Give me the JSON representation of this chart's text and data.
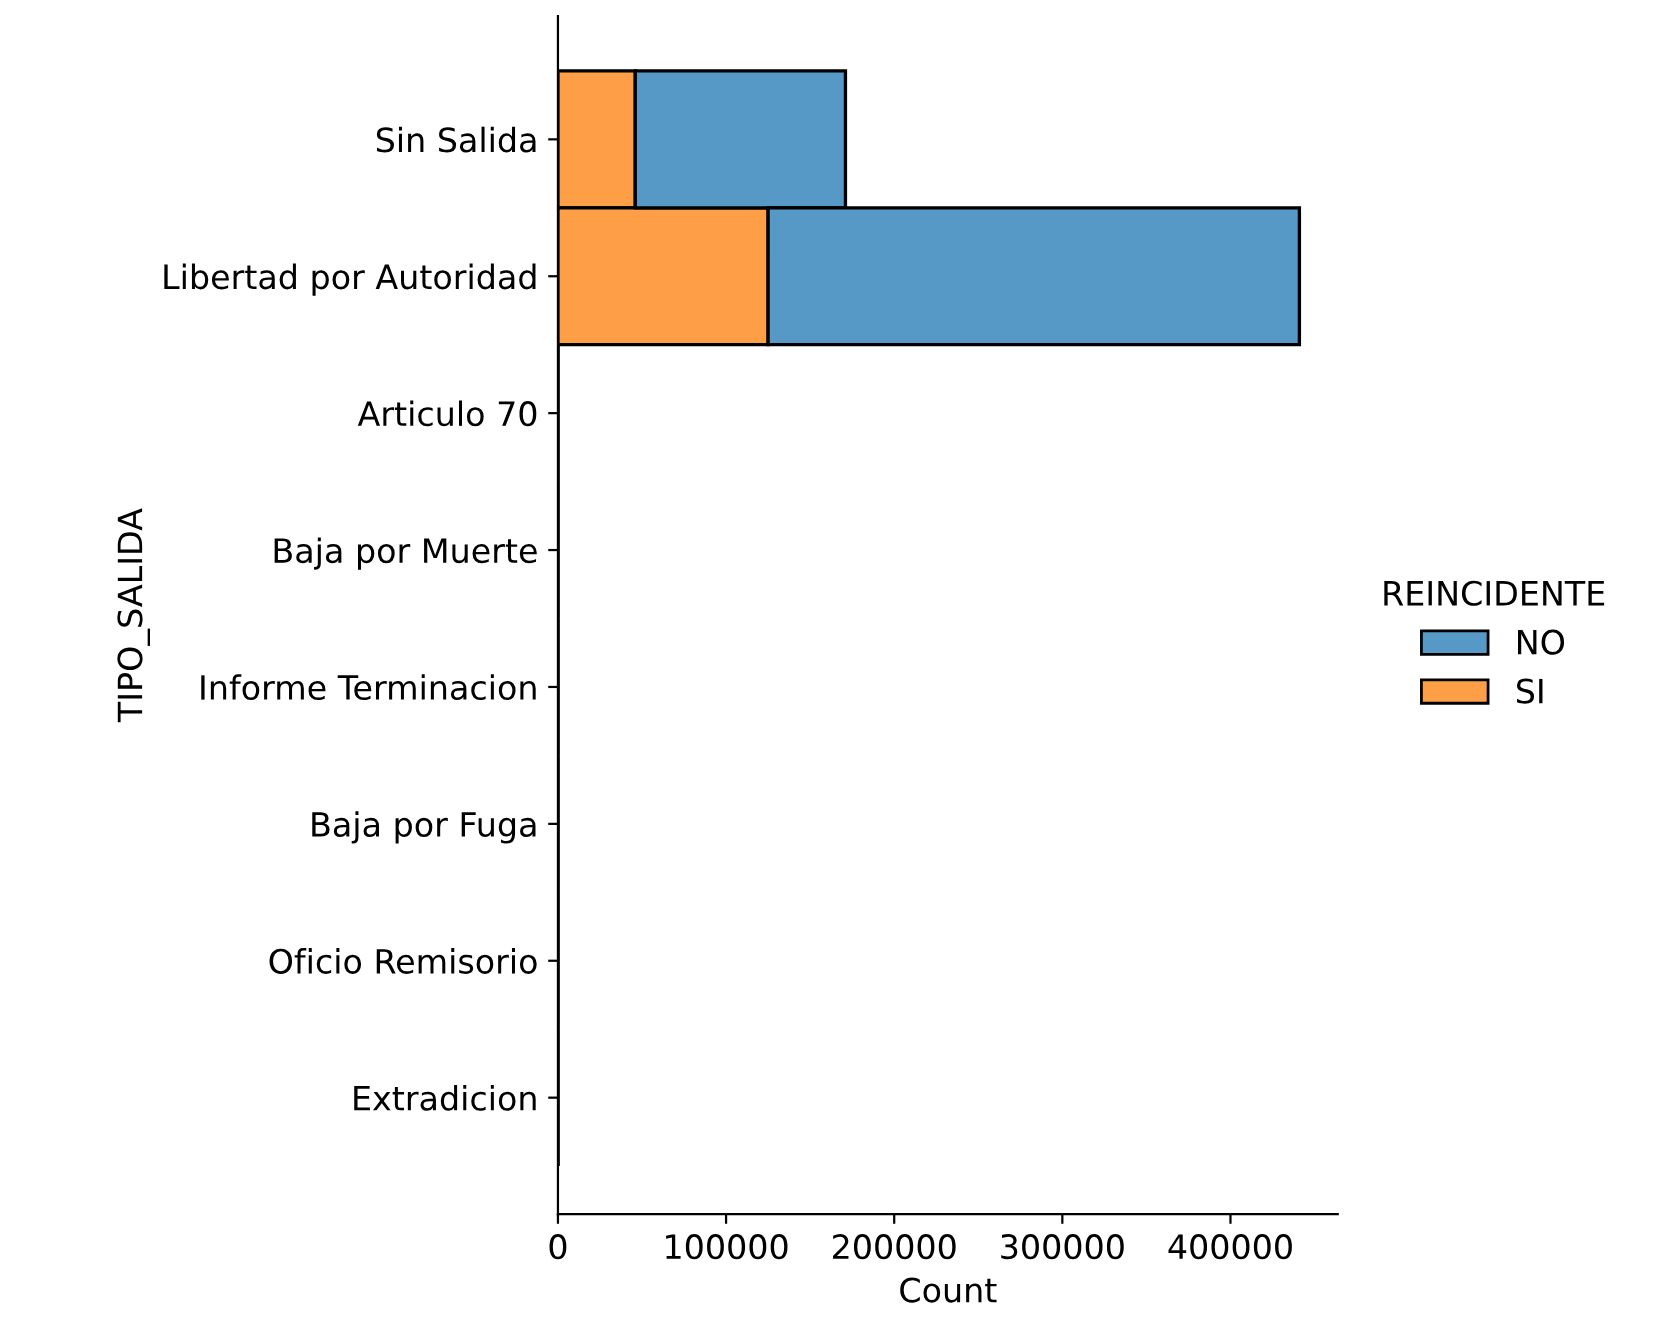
{
  "chart_data": {
    "type": "bar",
    "orientation": "horizontal",
    "stacked": true,
    "categories": [
      "Sin Salida",
      "Libertad por Autoridad",
      "Articulo 70",
      "Baja por Muerte",
      "Informe Terminacion",
      "Baja por Fuga",
      "Oficio Remisorio",
      "Extradicion"
    ],
    "series": [
      {
        "name": "SI",
        "color": "#fe9f48",
        "values": [
          46000,
          125000,
          0,
          0,
          0,
          0,
          0,
          0
        ]
      },
      {
        "name": "NO",
        "color": "#5698c6",
        "values": [
          125000,
          316000,
          0,
          0,
          0,
          0,
          0,
          0
        ]
      }
    ],
    "xlim": [
      0,
      463800
    ],
    "xticks": [
      0,
      100000,
      200000,
      300000,
      400000
    ],
    "xlabel": "Count",
    "ylabel": "TIPO_SALIDA",
    "legend_title": "REINCIDENTE",
    "legend": "right",
    "grid": false
  }
}
